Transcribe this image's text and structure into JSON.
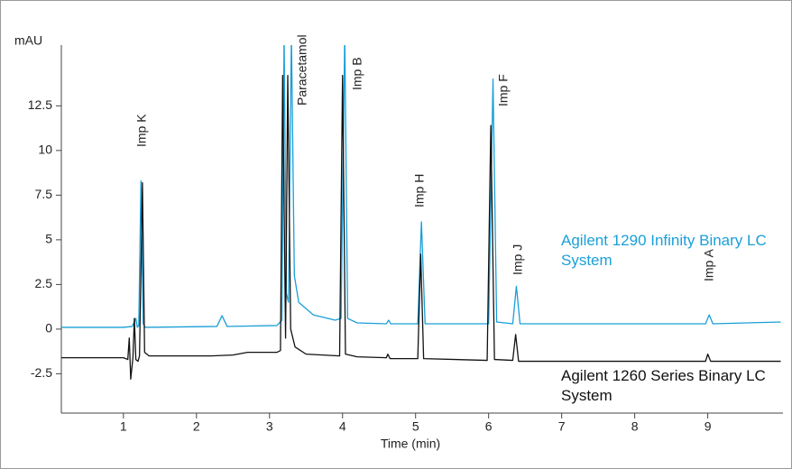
{
  "chart_data": {
    "type": "line",
    "y_label": "mAU",
    "x_label": "Time (min)",
    "xlim": [
      0.15,
      10.03
    ],
    "ylim": [
      -4.7,
      15.9
    ],
    "xticks": [
      1,
      2,
      3,
      4,
      5,
      6,
      7,
      8,
      9
    ],
    "yticks": [
      -2.5,
      0,
      2.5,
      5,
      7.5,
      10,
      12.5
    ],
    "annotations": [
      "Imp K",
      "Paracetamol",
      "Imp B",
      "Imp H",
      "Imp F",
      "Imp J",
      "Imp A"
    ],
    "series": [
      {
        "name": "Agilent 1290 Infinity Binary LC System",
        "color": "#1a9fd8",
        "x": [
          0.15,
          1.0,
          1.12,
          1.17,
          1.19,
          1.21,
          1.24,
          1.27,
          1.3,
          2.28,
          2.35,
          2.42,
          3.1,
          3.17,
          3.2,
          3.23,
          3.26,
          3.3,
          3.34,
          3.4,
          3.6,
          3.9,
          3.98,
          4.03,
          4.07,
          4.2,
          4.6,
          4.63,
          4.66,
          5.03,
          5.08,
          5.13,
          6.0,
          6.06,
          6.11,
          6.33,
          6.38,
          6.43,
          8.97,
          9.02,
          9.07,
          10.0
        ],
        "values": [
          0.1,
          0.1,
          0.15,
          0.6,
          0.1,
          0.2,
          8.3,
          0.3,
          0.1,
          0.15,
          0.75,
          0.15,
          0.2,
          0.5,
          16.5,
          2,
          1.5,
          16.5,
          3,
          1.5,
          0.8,
          0.5,
          0.6,
          16.5,
          0.6,
          0.35,
          0.3,
          0.5,
          0.3,
          0.3,
          6.0,
          0.3,
          0.3,
          14.0,
          0.4,
          0.3,
          2.4,
          0.3,
          0.3,
          0.8,
          0.3,
          0.4
        ]
      },
      {
        "name": "Agilent 1260 Series Binary LC System",
        "color": "#111111",
        "x": [
          0.15,
          1.0,
          1.06,
          1.08,
          1.1,
          1.13,
          1.15,
          1.17,
          1.2,
          1.22,
          1.26,
          1.29,
          1.35,
          2.2,
          2.5,
          2.7,
          3.1,
          3.15,
          3.18,
          3.22,
          3.25,
          3.29,
          3.35,
          3.5,
          3.96,
          4.0,
          4.04,
          4.2,
          4.6,
          4.62,
          4.65,
          5.03,
          5.07,
          5.11,
          5.98,
          6.03,
          6.08,
          6.33,
          6.37,
          6.41,
          8.97,
          9.0,
          9.04,
          10.0
        ],
        "values": [
          -1.6,
          -1.6,
          -1.7,
          -0.5,
          -2.8,
          -1.6,
          0.6,
          -1.7,
          -1.8,
          -1.5,
          8.2,
          -1.3,
          -1.5,
          -1.5,
          -1.45,
          -1.3,
          -1.3,
          -1.2,
          14.2,
          -0.5,
          14.2,
          0,
          -1.0,
          -1.4,
          -1.5,
          14.2,
          -1.4,
          -1.55,
          -1.6,
          -1.4,
          -1.65,
          -1.65,
          4.2,
          -1.65,
          -1.75,
          11.4,
          -1.7,
          -1.75,
          -0.3,
          -1.8,
          -1.8,
          -1.4,
          -1.8,
          -1.8
        ]
      }
    ]
  }
}
